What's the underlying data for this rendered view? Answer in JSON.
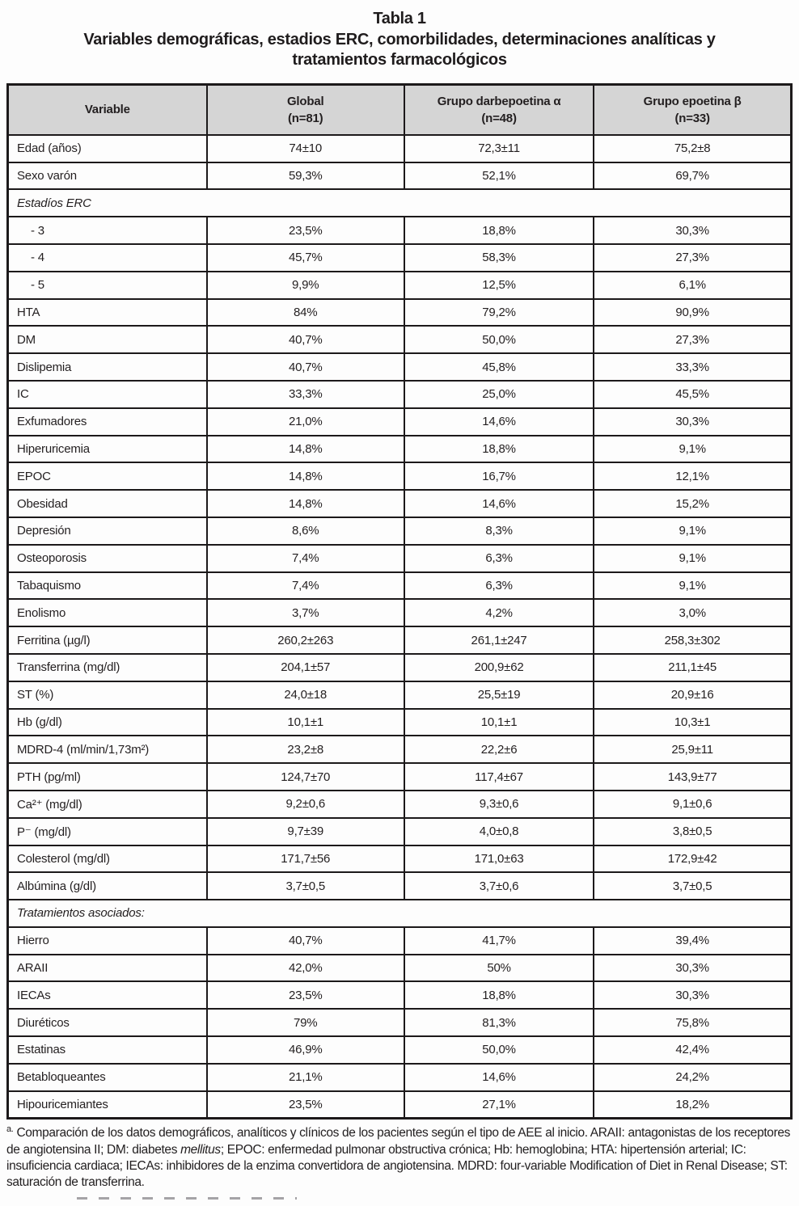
{
  "title": {
    "line1": "Tabla 1",
    "line2": "Variables demográficas, estadios ERC, comorbilidades, determinaciones analíticas y",
    "line3": "tratamientos farmacológicos"
  },
  "table": {
    "columns": [
      {
        "label": "Variable",
        "sub": ""
      },
      {
        "label": "Global",
        "sub": "(n=81)"
      },
      {
        "label": "Grupo darbepoetina α",
        "sub": "(n=48)"
      },
      {
        "label": "Grupo epoetina β",
        "sub": "(n=33)"
      }
    ],
    "rows": [
      {
        "type": "data",
        "label": "Edad (años)",
        "values": [
          "74±10",
          "72,3±11",
          "75,2±8"
        ]
      },
      {
        "type": "data",
        "label": "Sexo varón",
        "values": [
          "59,3%",
          "52,1%",
          "69,7%"
        ]
      },
      {
        "type": "section",
        "label": "Estadíos ERC"
      },
      {
        "type": "data",
        "indent": true,
        "label": "- 3",
        "values": [
          "23,5%",
          "18,8%",
          "30,3%"
        ]
      },
      {
        "type": "data",
        "indent": true,
        "label": "- 4",
        "values": [
          "45,7%",
          "58,3%",
          "27,3%"
        ]
      },
      {
        "type": "data",
        "indent": true,
        "label": "- 5",
        "values": [
          "9,9%",
          "12,5%",
          "6,1%"
        ]
      },
      {
        "type": "data",
        "label": "HTA",
        "values": [
          "84%",
          "79,2%",
          "90,9%"
        ]
      },
      {
        "type": "data",
        "label": "DM",
        "values": [
          "40,7%",
          "50,0%",
          "27,3%"
        ]
      },
      {
        "type": "data",
        "label": "Dislipemia",
        "values": [
          "40,7%",
          "45,8%",
          "33,3%"
        ]
      },
      {
        "type": "data",
        "label": "IC",
        "values": [
          "33,3%",
          "25,0%",
          "45,5%"
        ]
      },
      {
        "type": "data",
        "label": "Exfumadores",
        "values": [
          "21,0%",
          "14,6%",
          "30,3%"
        ]
      },
      {
        "type": "data",
        "label": "Hiperuricemia",
        "values": [
          "14,8%",
          "18,8%",
          "9,1%"
        ]
      },
      {
        "type": "data",
        "label": "EPOC",
        "values": [
          "14,8%",
          "16,7%",
          "12,1%"
        ]
      },
      {
        "type": "data",
        "label": "Obesidad",
        "values": [
          "14,8%",
          "14,6%",
          "15,2%"
        ]
      },
      {
        "type": "data",
        "label": "Depresión",
        "values": [
          "8,6%",
          "8,3%",
          "9,1%"
        ]
      },
      {
        "type": "data",
        "label": "Osteoporosis",
        "values": [
          "7,4%",
          "6,3%",
          "9,1%"
        ]
      },
      {
        "type": "data",
        "label": "Tabaquismo",
        "values": [
          "7,4%",
          "6,3%",
          "9,1%"
        ]
      },
      {
        "type": "data",
        "label": "Enolismo",
        "values": [
          "3,7%",
          "4,2%",
          "3,0%"
        ]
      },
      {
        "type": "data",
        "label": "Ferritina (µg/l)",
        "values": [
          "260,2±263",
          "261,1±247",
          "258,3±302"
        ]
      },
      {
        "type": "data",
        "label": "Transferrina (mg/dl)",
        "values": [
          "204,1±57",
          "200,9±62",
          "211,1±45"
        ]
      },
      {
        "type": "data",
        "label": "ST (%)",
        "values": [
          "24,0±18",
          "25,5±19",
          "20,9±16"
        ]
      },
      {
        "type": "data",
        "label": "Hb (g/dl)",
        "values": [
          "10,1±1",
          "10,1±1",
          "10,3±1"
        ]
      },
      {
        "type": "data",
        "label": "MDRD-4 (ml/min/1,73m²)",
        "values": [
          "23,2±8",
          "22,2±6",
          "25,9±11"
        ]
      },
      {
        "type": "data",
        "label": "PTH (pg/ml)",
        "values": [
          "124,7±70",
          "117,4±67",
          "143,9±77"
        ]
      },
      {
        "type": "data",
        "label": "Ca²⁺ (mg/dl)",
        "values": [
          "9,2±0,6",
          "9,3±0,6",
          "9,1±0,6"
        ]
      },
      {
        "type": "data",
        "label": "P⁻ (mg/dl)",
        "values": [
          "9,7±39",
          "4,0±0,8",
          "3,8±0,5"
        ]
      },
      {
        "type": "data",
        "label": "Colesterol (mg/dl)",
        "values": [
          "171,7±56",
          "171,0±63",
          "172,9±42"
        ]
      },
      {
        "type": "data",
        "label": "Albúmina (g/dl)",
        "values": [
          "3,7±0,5",
          "3,7±0,6",
          "3,7±0,5"
        ]
      },
      {
        "type": "section",
        "label": "Tratamientos asociados:"
      },
      {
        "type": "data",
        "label": "Hierro",
        "values": [
          "40,7%",
          "41,7%",
          "39,4%"
        ]
      },
      {
        "type": "data",
        "label": "ARAII",
        "values": [
          "42,0%",
          "50%",
          "30,3%"
        ]
      },
      {
        "type": "data",
        "label": "IECAs",
        "values": [
          "23,5%",
          "18,8%",
          "30,3%"
        ]
      },
      {
        "type": "data",
        "label": "Diuréticos",
        "values": [
          "79%",
          "81,3%",
          "75,8%"
        ]
      },
      {
        "type": "data",
        "label": "Estatinas",
        "values": [
          "46,9%",
          "50,0%",
          "42,4%"
        ]
      },
      {
        "type": "data",
        "label": "Betabloqueantes",
        "values": [
          "21,1%",
          "14,6%",
          "24,2%"
        ]
      },
      {
        "type": "data",
        "label": "Hipouricemiantes",
        "values": [
          "23,5%",
          "27,1%",
          "18,2%"
        ]
      }
    ]
  },
  "footnote": {
    "marker": "a.",
    "part1": " Comparación de los datos demográficos, analíticos y clínicos de los pacientes según el tipo de AEE al inicio. ARAII: antagonistas de los receptores de angiotensina II; DM: diabetes ",
    "italic": "mellitus",
    "part2": "; EPOC: enfermedad pulmonar obstructiva crónica; Hb: hemoglobina; HTA: hipertensión arterial; IC: insuficiencia cardiaca; IECAs: inhibidores de la enzima convertidora de angiotensina. MDRD: four-variable Modification of Diet in Renal Disease; ST: saturación de transferrina."
  },
  "colors": {
    "header_bg": "#d5d5d5",
    "border": "#1c191a",
    "text": "#231f20",
    "page_bg": "#fdfdfd"
  }
}
